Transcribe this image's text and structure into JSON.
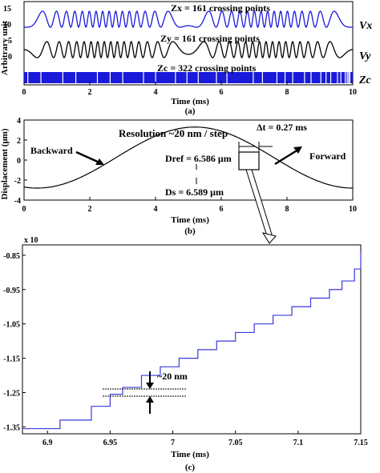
{
  "colors": {
    "blue": "#1a1adb",
    "black": "#000000",
    "step": "#3a3adb"
  },
  "panel_a": {
    "caption": "(a)",
    "xlabel": "Time (ms)",
    "ylabel": "Arbitrary unit",
    "xticks": [
      "0",
      "2",
      "4",
      "6",
      "8",
      "10"
    ],
    "zx_text": "Zx = 161 crossing points",
    "zy_text": "Zy = 161 crossing points",
    "zc_text": "Zc = 322 crossing points",
    "label_vx": "Vx",
    "label_vy": "Vy",
    "label_zc": "Zc",
    "yticks": [
      "15",
      "10",
      "5",
      "0"
    ]
  },
  "panel_b": {
    "caption": "(b)",
    "xlabel": "Time (ms)",
    "ylabel": "Displacement (μm)",
    "xticks": [
      "0",
      "2",
      "4",
      "6",
      "8",
      "10"
    ],
    "yticks": [
      "4",
      "2",
      "0",
      "-2",
      "-4"
    ],
    "resolution_text": "Resolution ~20 nm / step",
    "backward": "Backward",
    "forward": "Forward",
    "dref_text": "Dref = 6.586 μm",
    "ds_text": "Ds = 6.589 μm",
    "dt_text": "Δt = 0.27 ms"
  },
  "panel_c": {
    "caption": "(c)",
    "xlabel": "Time (ms)",
    "xticks": [
      "6.9",
      "6.95",
      "7",
      "7.05",
      "7.1",
      "7.15"
    ],
    "yticks": [
      "-0.85",
      "-0.95",
      "-1.05",
      "-1.15",
      "-1.25",
      "-1.35"
    ],
    "exponent": "x 10",
    "step_text": "~20 nm"
  },
  "chart_data": [
    {
      "type": "line",
      "title": "",
      "xlabel": "Time (ms)",
      "ylabel": "Arbitrary unit",
      "xlim": [
        0,
        10
      ],
      "series": [
        {
          "name": "Vx",
          "description_note": "",
          "crossings": 161
        },
        {
          "name": "Vy",
          "crossings": 161
        },
        {
          "name": "Zc",
          "crossings": 322
        }
      ]
    },
    {
      "type": "line",
      "xlabel": "Time (ms)",
      "ylabel": "Displacement (μm)",
      "xlim": [
        0,
        10
      ],
      "ylim": [
        -4,
        4
      ],
      "x": [
        0,
        1,
        2,
        3,
        4,
        5,
        5.2,
        6,
        7,
        8,
        9,
        10
      ],
      "y": [
        3.3,
        2.9,
        1.6,
        0.0,
        -1.6,
        -2.7,
        -2.8,
        -2.3,
        -0.8,
        1.0,
        2.6,
        3.3
      ]
    },
    {
      "type": "line",
      "xlabel": "Time (ms)",
      "xlim": [
        6.88,
        7.15
      ],
      "ylim": [
        -1.37,
        -0.82
      ],
      "x": [
        6.88,
        6.91,
        6.935,
        6.95,
        6.96,
        6.975,
        6.99,
        7.005,
        7.02,
        7.035,
        7.05,
        7.065,
        7.08,
        7.095,
        7.11,
        7.125,
        7.135,
        7.145,
        7.15
      ],
      "y": [
        -1.355,
        -1.33,
        -1.29,
        -1.255,
        -1.235,
        -1.2,
        -1.175,
        -1.15,
        -1.125,
        -1.1,
        -1.075,
        -1.05,
        -1.025,
        -1.0,
        -0.975,
        -0.95,
        -0.925,
        -0.89,
        -0.84
      ]
    }
  ]
}
